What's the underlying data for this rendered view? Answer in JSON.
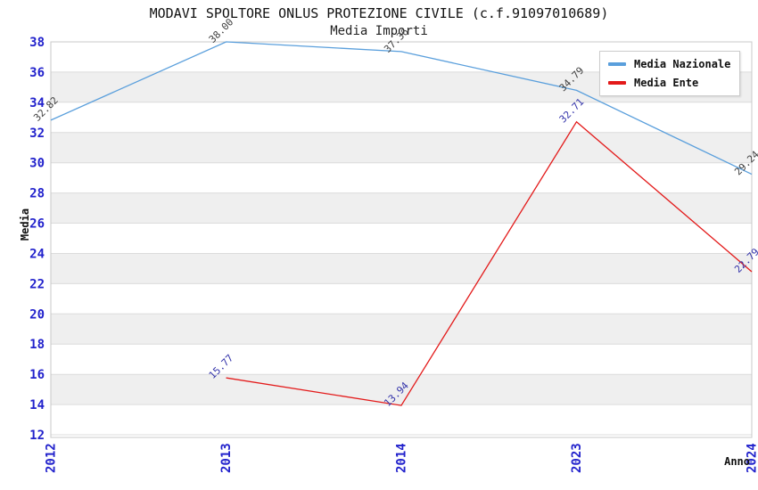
{
  "title": "MODAVI SPOLTORE ONLUS PROTEZIONE CIVILE (c.f.91097010689)",
  "subtitle": "Media Importi",
  "chart_data": {
    "type": "line",
    "title": "MODAVI SPOLTORE ONLUS PROTEZIONE CIVILE (c.f.91097010689)",
    "subtitle": "Media Importi",
    "xlabel": "Anno",
    "ylabel": "Media",
    "categories": [
      "2012",
      "2013",
      "2014",
      "2023",
      "2024"
    ],
    "series": [
      {
        "name": "Media Nazionale",
        "values": [
          32.82,
          38.0,
          37.36,
          34.79,
          29.24
        ],
        "line_color": "#5a9fdc",
        "label_color": "#3f3f3f"
      },
      {
        "name": "Media Ente",
        "values": [
          null,
          15.77,
          13.94,
          32.71,
          22.79
        ],
        "line_color": "#e31a1a",
        "label_color": "#3333aa"
      }
    ],
    "ylim": [
      12,
      38
    ],
    "ytick_step": 2,
    "yticks": [
      12,
      14,
      16,
      18,
      20,
      22,
      24,
      26,
      28,
      30,
      32,
      34,
      36,
      38
    ],
    "point_label_format": "2dp",
    "legend_position": "top-right",
    "grid": "alternating-bands",
    "colors": {
      "band": "#efefef",
      "gridline": "#dcdcdc",
      "plot_border": "#c8c8c8",
      "axis_tick_text": "#2222cc",
      "background": "#ffffff"
    }
  }
}
